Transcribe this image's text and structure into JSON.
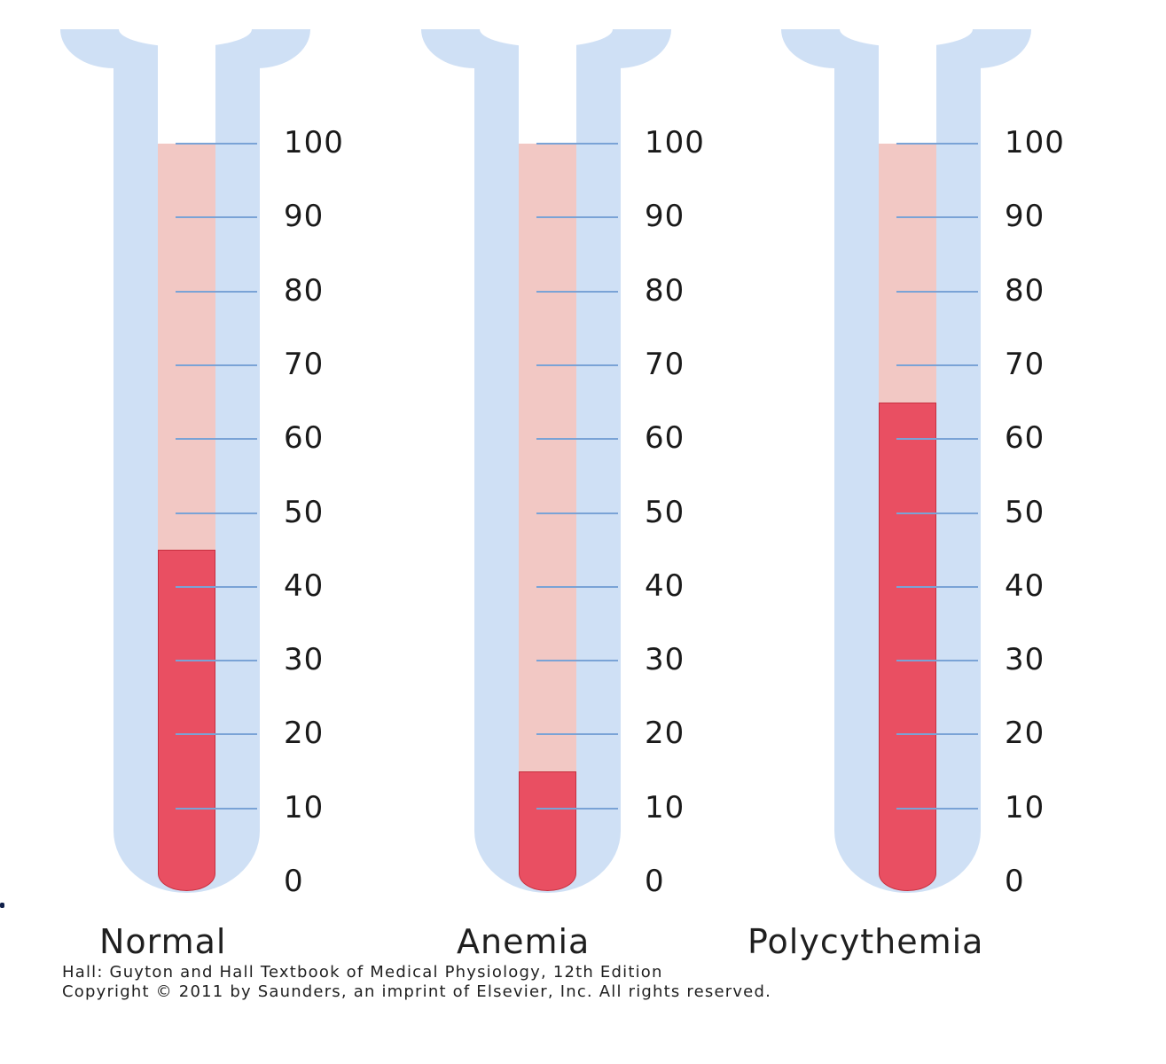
{
  "figure": {
    "tubes": [
      {
        "label": "Normal",
        "hematocrit": 45
      },
      {
        "label": "Anemia",
        "hematocrit": 15
      },
      {
        "label": "Polycythemia",
        "hematocrit": 65
      }
    ],
    "scale_ticks": [
      "100",
      "90",
      "80",
      "70",
      "60",
      "50",
      "40",
      "30",
      "20",
      "10",
      "0"
    ],
    "caption_line1": "Hall: Guyton and Hall Textbook of Medical Physiology, 12th Edition",
    "caption_line2": "Copyright © 2011 by Saunders, an imprint of Elsevier, Inc. All rights reserved.",
    "colors": {
      "glass": "#cfe0f5",
      "plasma": "#f2c8c4",
      "red_cells": "#e94f62",
      "tick": "#7aa3d6"
    }
  }
}
